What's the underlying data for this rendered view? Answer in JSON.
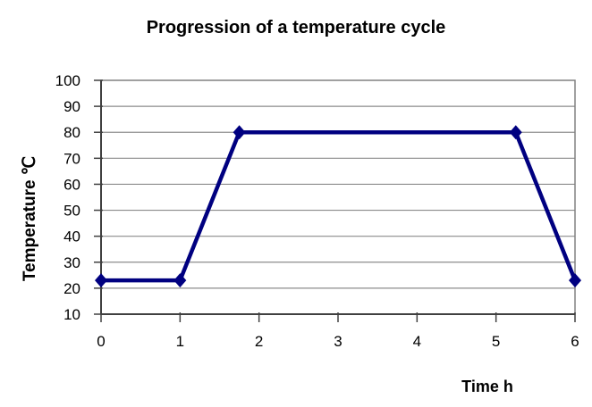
{
  "chart_data": {
    "type": "line",
    "title": "Progression of a temperature cycle",
    "xlabel": "Time h",
    "ylabel": "Temperature ℃",
    "xlim": [
      0,
      6
    ],
    "ylim": [
      10,
      100
    ],
    "x_ticks": [
      0,
      1,
      2,
      3,
      4,
      5,
      6
    ],
    "y_ticks": [
      10,
      20,
      30,
      40,
      50,
      60,
      70,
      80,
      90,
      100
    ],
    "grid": "horizontal-only",
    "legend_position": "none",
    "series": [
      {
        "name": "Temperature",
        "marker": "diamond",
        "color": "#000080",
        "points": [
          [
            0,
            23
          ],
          [
            1,
            23
          ],
          [
            1.75,
            80
          ],
          [
            5.25,
            80
          ],
          [
            6,
            23
          ]
        ]
      }
    ],
    "colors": {
      "line": "#000080",
      "gridline": "#8c8c8c",
      "axis": "#404040",
      "plot_border": "#808080",
      "text": "#000000",
      "background": "#ffffff"
    }
  }
}
